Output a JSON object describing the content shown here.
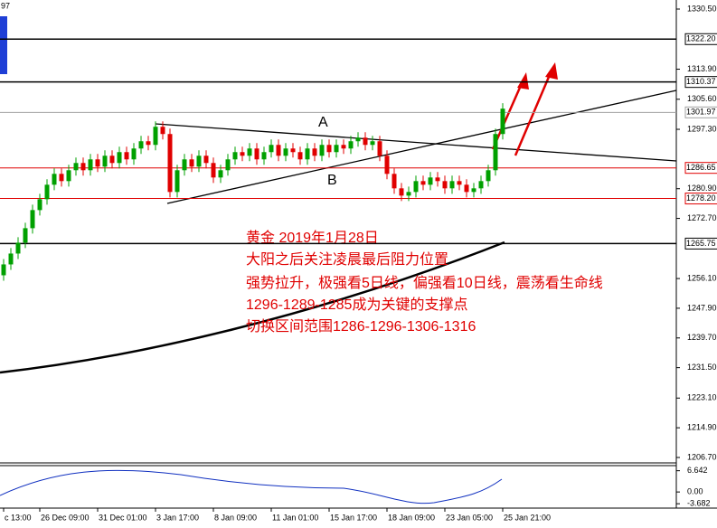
{
  "chart_data": {
    "type": "candlestick",
    "top_label": "97",
    "up_color": "#00a000",
    "down_color": "#e00000",
    "categories": [
      "c 13:00",
      null,
      null,
      null,
      null,
      "26 Dec 09:00",
      null,
      null,
      null,
      null,
      null,
      null,
      null,
      "31 Dec 01:00",
      null,
      null,
      null,
      null,
      null,
      null,
      null,
      "3 Jan 17:00",
      null,
      null,
      null,
      null,
      null,
      null,
      null,
      "8 Jan 09:00",
      null,
      null,
      null,
      null,
      null,
      null,
      null,
      "11 Jan 01:00",
      null,
      null,
      null,
      null,
      null,
      null,
      null,
      "15 Jan 17:00",
      null,
      null,
      null,
      null,
      null,
      null,
      null,
      "18 Jan 09:00",
      null,
      null,
      null,
      null,
      null,
      null,
      null,
      "23 Jan 05:00",
      null,
      null,
      null,
      null,
      null,
      null,
      null,
      "25 Jan 21:00"
    ],
    "ohlc": [
      [
        1257,
        1261.5,
        1255.5,
        1260
      ],
      [
        1260,
        1264.5,
        1258.5,
        1263
      ],
      [
        1263,
        1267.5,
        1261.5,
        1266
      ],
      [
        1266,
        1271.5,
        1264.5,
        1270
      ],
      [
        1270,
        1276.5,
        1268.5,
        1275
      ],
      [
        1275,
        1279.5,
        1273.5,
        1278
      ],
      [
        1278,
        1283.5,
        1276.5,
        1282
      ],
      [
        1282,
        1286.5,
        1280.5,
        1285
      ],
      [
        1285,
        1286.5,
        1281.5,
        1283
      ],
      [
        1283,
        1287.5,
        1281.5,
        1286
      ],
      [
        1286,
        1289.5,
        1284.5,
        1288
      ],
      [
        1288,
        1289.5,
        1284.5,
        1286
      ],
      [
        1286,
        1290.5,
        1284.5,
        1289
      ],
      [
        1289,
        1290.5,
        1285.5,
        1287
      ],
      [
        1287,
        1291.5,
        1285.5,
        1290
      ],
      [
        1290,
        1291.5,
        1286.5,
        1288
      ],
      [
        1288,
        1292.5,
        1286.5,
        1291
      ],
      [
        1291,
        1292.5,
        1287.5,
        1289
      ],
      [
        1289,
        1293.5,
        1287.5,
        1292
      ],
      [
        1292,
        1295.5,
        1290.5,
        1294
      ],
      [
        1294,
        1295.5,
        1291.5,
        1293
      ],
      [
        1293,
        1299.5,
        1291.5,
        1298
      ],
      [
        1298,
        1299.5,
        1294.5,
        1296
      ],
      [
        1296,
        1297.5,
        1278.5,
        1280
      ],
      [
        1280,
        1287.5,
        1278.5,
        1286
      ],
      [
        1286,
        1290.5,
        1284.5,
        1289
      ],
      [
        1289,
        1290.5,
        1285.5,
        1287
      ],
      [
        1287,
        1291.5,
        1285.5,
        1290
      ],
      [
        1290,
        1291.5,
        1286.5,
        1288
      ],
      [
        1288,
        1289.5,
        1282.5,
        1284
      ],
      [
        1284,
        1287.5,
        1282.5,
        1286
      ],
      [
        1286,
        1290.5,
        1284.5,
        1289
      ],
      [
        1289,
        1292.5,
        1287.5,
        1291
      ],
      [
        1291,
        1292.5,
        1288.5,
        1290
      ],
      [
        1290,
        1293.5,
        1288.5,
        1292
      ],
      [
        1292,
        1293.5,
        1287.5,
        1289
      ],
      [
        1289,
        1292.5,
        1287.5,
        1291
      ],
      [
        1291,
        1294.5,
        1289.5,
        1293
      ],
      [
        1293,
        1294.5,
        1288.5,
        1290
      ],
      [
        1290,
        1293.5,
        1288.5,
        1292
      ],
      [
        1292,
        1293.5,
        1289.5,
        1291
      ],
      [
        1291,
        1292.5,
        1287.5,
        1289
      ],
      [
        1289,
        1293.5,
        1287.5,
        1292
      ],
      [
        1292,
        1293.5,
        1288.5,
        1290
      ],
      [
        1290,
        1294.5,
        1288.5,
        1293
      ],
      [
        1293,
        1294.5,
        1289.5,
        1291
      ],
      [
        1291,
        1294.5,
        1289.5,
        1293
      ],
      [
        1293,
        1294.5,
        1290.5,
        1292
      ],
      [
        1292,
        1295.5,
        1290.5,
        1294
      ],
      [
        1294,
        1296.5,
        1292.5,
        1295
      ],
      [
        1295,
        1296.5,
        1291.5,
        1293
      ],
      [
        1293,
        1295.5,
        1291.5,
        1294
      ],
      [
        1294,
        1295.5,
        1288.5,
        1290
      ],
      [
        1290,
        1291.5,
        1283.5,
        1285
      ],
      [
        1285,
        1286.5,
        1279.5,
        1281
      ],
      [
        1281,
        1282.5,
        1277.5,
        1279
      ],
      [
        1279,
        1281.5,
        1277.5,
        1280
      ],
      [
        1280,
        1284.5,
        1278.5,
        1283
      ],
      [
        1283,
        1284.5,
        1280.5,
        1282
      ],
      [
        1282,
        1285.5,
        1280.5,
        1284
      ],
      [
        1284,
        1285.5,
        1281.5,
        1283
      ],
      [
        1283,
        1284.5,
        1279.5,
        1281
      ],
      [
        1281,
        1284.5,
        1279.5,
        1283
      ],
      [
        1283,
        1284.5,
        1280.5,
        1282
      ],
      [
        1282,
        1283.5,
        1278.5,
        1280
      ],
      [
        1280,
        1282.5,
        1278.5,
        1281
      ],
      [
        1281,
        1284.5,
        1279.5,
        1283
      ],
      [
        1283,
        1287.5,
        1281.5,
        1286
      ],
      [
        1286,
        1297.5,
        1284.5,
        1296
      ],
      [
        1296,
        1304.5,
        1294.5,
        1303
      ]
    ],
    "ylim": [
      1205.2,
      1333.0
    ],
    "yticks": [
      {
        "value": 1330.5,
        "label": "1330.50"
      },
      {
        "value": 1313.9,
        "label": "1313.90"
      },
      {
        "value": 1305.6,
        "label": "1305.60"
      },
      {
        "value": 1297.3,
        "label": "1297.30"
      },
      {
        "value": 1280.9,
        "label": "1280.90"
      },
      {
        "value": 1272.7,
        "label": "1272.70"
      },
      {
        "value": 1256.1,
        "label": "1256.10"
      },
      {
        "value": 1247.9,
        "label": "1247.90"
      },
      {
        "value": 1239.7,
        "label": "1239.70"
      },
      {
        "value": 1231.5,
        "label": "1231.50"
      },
      {
        "value": 1223.1,
        "label": "1223.10"
      },
      {
        "value": 1214.9,
        "label": "1214.90"
      },
      {
        "value": 1206.7,
        "label": "1206.70"
      }
    ],
    "levels": [
      {
        "value": 1322.2,
        "label": "1322.20",
        "color": "#000000"
      },
      {
        "value": 1310.37,
        "label": "1310.37",
        "color": "#000000"
      },
      {
        "value": 1286.65,
        "label": "1286.65",
        "color": "#e00000"
      },
      {
        "value": 1278.2,
        "label": "1278.20",
        "color": "#e00000"
      },
      {
        "value": 1265.75,
        "label": "1265.75",
        "color": "#000000"
      }
    ],
    "current": {
      "value": 1301.97,
      "label": "1301.97",
      "color": "#a0a0a0"
    },
    "annotations": {
      "a": "A",
      "b": "B",
      "notes": [
        "黄金 2019年1月28日",
        "大阳之后关注凌晨最后阻力位置",
        "强势拉升，极强看5日线，偏强看10日线，震荡看生命线",
        "1296-1289-1285成为关键的支撑点",
        "切换区间范围1286-1296-1306-1316"
      ]
    },
    "indicator": {
      "ylim": [
        -5.05,
        8.24
      ],
      "ticks": [
        {
          "value": 6.642,
          "label": "6.642"
        },
        {
          "value": 0,
          "label": "0.00"
        },
        {
          "value": -3.682,
          "label": "-3.682"
        }
      ]
    }
  }
}
